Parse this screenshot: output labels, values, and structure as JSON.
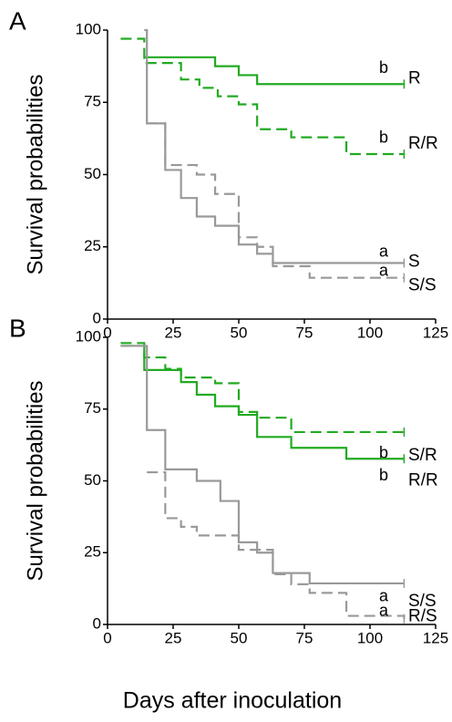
{
  "chart_data": [
    {
      "type": "step",
      "panel": "A",
      "ylabel": "Survival probabilities",
      "xlim": [
        0,
        125
      ],
      "xticks": [
        0,
        25,
        50,
        75,
        100,
        125
      ],
      "ylim": [
        0,
        100
      ],
      "yticks": [
        0,
        25,
        50,
        75,
        100
      ],
      "series": [
        {
          "name": "R",
          "annotation": "b",
          "color": "#22aa22",
          "dash": false,
          "x": [
            14,
            41,
            50,
            57,
            113
          ],
          "values": [
            90.6,
            87.5,
            84.4,
            81.3,
            81.3
          ]
        },
        {
          "name": "R/R",
          "annotation": "b",
          "color": "#22aa22",
          "dash": true,
          "x": [
            5,
            14,
            28,
            35,
            42,
            50,
            57,
            70,
            91,
            113
          ],
          "values": [
            97,
            88.6,
            82.9,
            80,
            77.1,
            74.3,
            65.7,
            62.9,
            57.1,
            57.1
          ]
        },
        {
          "name": "S",
          "annotation": "a",
          "color": "#999999",
          "dash": false,
          "x": [
            14,
            15,
            22,
            28,
            34,
            41,
            50,
            57,
            63,
            113
          ],
          "values": [
            100,
            67.7,
            51.6,
            41.9,
            35.5,
            32.3,
            25.8,
            22.6,
            19.4,
            19.4
          ]
        },
        {
          "name": "S/S",
          "annotation": "a",
          "color": "#999999",
          "dash": true,
          "x": [
            15,
            22,
            34,
            41,
            50,
            57,
            63,
            77,
            113
          ],
          "values": [
            67.7,
            53.3,
            50,
            43.3,
            28.3,
            25,
            18.3,
            14.3,
            14.3
          ]
        }
      ]
    },
    {
      "type": "step",
      "panel": "B",
      "ylabel": "Survival probabilities",
      "xlabel": "Days after inoculation",
      "xlim": [
        0,
        125
      ],
      "xticks": [
        0,
        25,
        50,
        75,
        100,
        125
      ],
      "ylim": [
        0,
        100
      ],
      "yticks": [
        0,
        25,
        50,
        75,
        100
      ],
      "series": [
        {
          "name": "S/R",
          "annotation": "b",
          "color": "#22aa22",
          "dash": true,
          "x": [
            5,
            14,
            22,
            28,
            41,
            50,
            57,
            70,
            113
          ],
          "values": [
            98,
            93,
            89,
            86,
            84,
            74,
            72,
            67,
            67
          ]
        },
        {
          "name": "R/R",
          "annotation": "b",
          "color": "#22aa22",
          "dash": false,
          "x": [
            5,
            14,
            28,
            34,
            41,
            50,
            57,
            70,
            91,
            113
          ],
          "values": [
            97,
            88.6,
            84.4,
            80,
            76,
            73,
            65.3,
            61.5,
            57.7,
            57.7
          ]
        },
        {
          "name": "S/S",
          "annotation": "a",
          "color": "#999999",
          "dash": false,
          "x": [
            5,
            15,
            22,
            34,
            43,
            50,
            57,
            63,
            77,
            113
          ],
          "values": [
            97,
            67.7,
            54,
            50,
            43,
            28.6,
            25,
            17.9,
            14.3,
            14.3
          ]
        },
        {
          "name": "R/S",
          "annotation": "a",
          "color": "#999999",
          "dash": true,
          "x": [
            15,
            22,
            28,
            34,
            50,
            63,
            70,
            77,
            91,
            113
          ],
          "values": [
            53,
            37,
            34,
            31,
            26,
            17.5,
            14,
            11,
            3,
            2
          ]
        }
      ]
    }
  ]
}
